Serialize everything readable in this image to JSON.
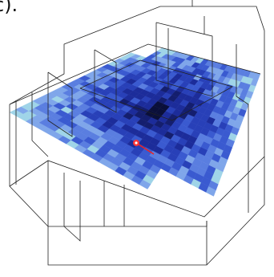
{
  "figure": {
    "label": "c)."
  }
}
